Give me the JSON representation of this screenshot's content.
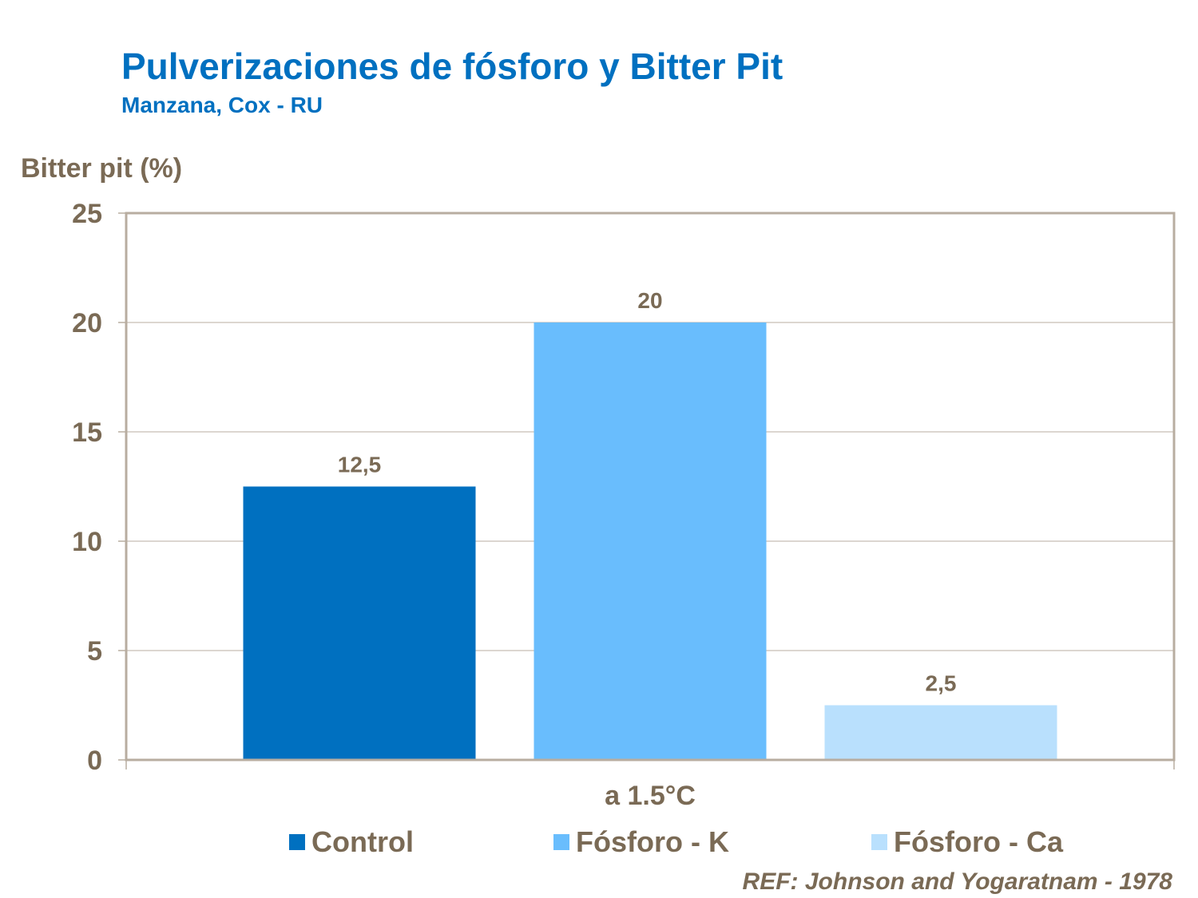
{
  "chart_data": {
    "type": "bar",
    "title": "Pulverizaciones de fósforo y Bitter Pit",
    "subtitle": "Manzana, Cox - RU",
    "ylabel": "Bitter pit (%)",
    "xlabel": "",
    "categories": [
      "a 1.5°C"
    ],
    "series": [
      {
        "name": "Control",
        "values": [
          12.5
        ],
        "label": "12,5",
        "color": "#0070c0"
      },
      {
        "name": "Fósforo - K",
        "values": [
          20
        ],
        "label": "20",
        "color": "#69bdfd"
      },
      {
        "name": "Fósforo - Ca",
        "values": [
          2.5
        ],
        "label": "2,5",
        "color": "#b9e0fd"
      }
    ],
    "ylim": [
      0,
      25
    ],
    "yticks": [
      "0",
      "5",
      "10",
      "15",
      "20",
      "25"
    ],
    "grid": true,
    "legend": "bottom",
    "reference": "REF: Johnson and Yogaratnam - 1978"
  }
}
